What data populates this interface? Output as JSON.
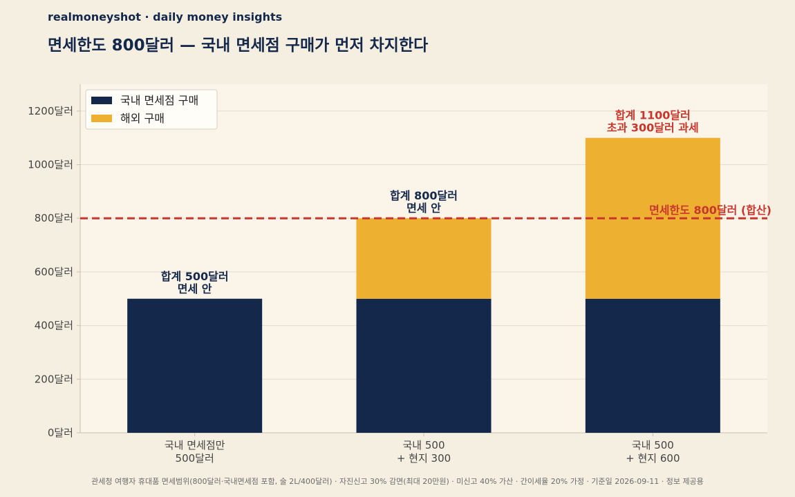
{
  "header": {
    "brand": "realmoneyshot · daily money insights",
    "title": "면세한도 800달러 — 국내 면세점 구매가 먼저 차지한다"
  },
  "footer": {
    "note": "관세청 여행자 휴대품 면세범위(800달러·국내면세점 포함, 술 2L/400달러) · 자진신고 30% 감면(최대 20만원) · 미신고 40% 가산 · 간이세율 20% 가정 · 기준일 2026-09-11 · 정보 제공용"
  },
  "chart_data": {
    "type": "bar",
    "stacked": true,
    "categories": [
      [
        "국내 면세점만",
        "500달러"
      ],
      [
        "국내 500",
        "+ 현지 300"
      ],
      [
        "국내 500",
        "+ 현지 600"
      ]
    ],
    "series": [
      {
        "name": "국내 면세점 구매",
        "values": [
          500,
          500,
          500
        ],
        "color": "#14284b"
      },
      {
        "name": "해외 구매",
        "values": [
          0,
          300,
          600
        ],
        "color": "#eeb031"
      }
    ],
    "bar_labels": [
      [
        "합계 500달러",
        "면세 안"
      ],
      [
        "합계 800달러",
        "면세 안"
      ],
      [
        "합계 1100달러",
        "초과 300달러 과세"
      ]
    ],
    "bar_label_colors": [
      "#14284b",
      "#14284b",
      "#c8372d"
    ],
    "threshold": {
      "value": 800,
      "label": "면세한도 800달러 (합산)",
      "color": "#c8372d"
    },
    "ylim": [
      0,
      1300
    ],
    "yticks": [
      0,
      200,
      400,
      600,
      800,
      1000,
      1200
    ],
    "ytick_labels": [
      "0달러",
      "200달러",
      "400달러",
      "600달러",
      "800달러",
      "1000달러",
      "1200달러"
    ],
    "grid": true,
    "legend_position": "top-left",
    "colors": {
      "plot_bg": "#faf4e9",
      "page_bg": "#f5efe1",
      "grid": "#e6dccb",
      "axis": "#c9bfae",
      "tick_text": "#444444"
    }
  }
}
